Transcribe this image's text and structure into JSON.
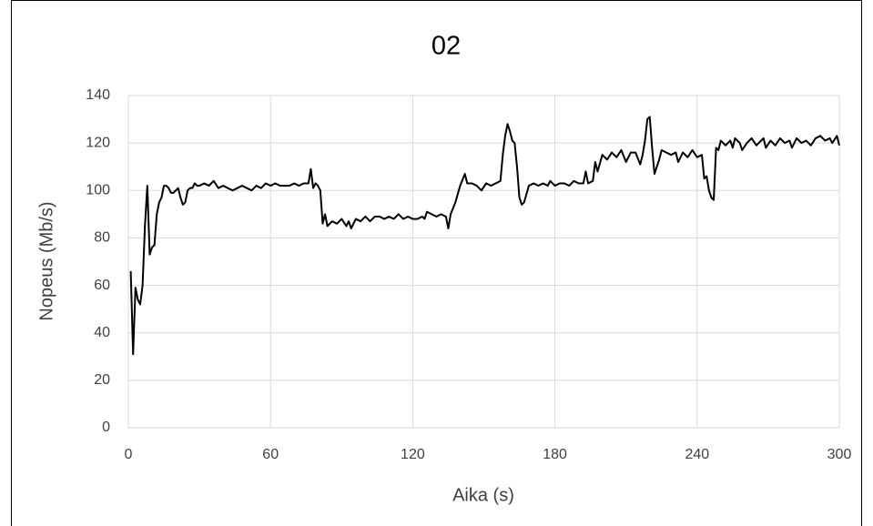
{
  "chart_data": {
    "type": "line",
    "title": "02",
    "x_label": "Aika (s)",
    "y_label": "Nopeus (Mb/s)",
    "x": [
      1,
      2,
      3,
      4,
      5,
      6,
      7,
      8,
      9,
      10,
      11,
      12,
      13,
      14,
      15,
      16,
      17,
      18,
      19,
      20,
      21,
      22,
      23,
      24,
      25,
      26,
      27,
      28,
      29,
      30,
      32,
      34,
      36,
      38,
      40,
      42,
      44,
      46,
      48,
      50,
      52,
      54,
      56,
      58,
      60,
      62,
      64,
      66,
      68,
      70,
      72,
      74,
      76,
      77,
      78,
      79,
      80,
      81,
      82,
      83,
      84,
      86,
      88,
      90,
      92,
      93,
      94,
      96,
      98,
      100,
      102,
      104,
      106,
      108,
      110,
      112,
      114,
      116,
      118,
      120,
      122,
      124,
      125,
      126,
      128,
      130,
      132,
      134,
      135,
      136,
      138,
      140,
      142,
      143,
      145,
      147,
      149,
      151,
      153,
      155,
      157,
      158,
      159,
      160,
      161,
      162,
      163,
      164,
      165,
      166,
      167,
      169,
      171,
      173,
      175,
      177,
      178,
      180,
      182,
      184,
      186,
      188,
      190,
      192,
      193,
      194,
      196,
      197,
      198,
      200,
      202,
      204,
      206,
      208,
      210,
      212,
      214,
      216,
      217,
      218,
      219,
      220,
      221,
      222,
      224,
      225,
      227,
      229,
      231,
      232,
      234,
      236,
      238,
      240,
      242,
      243,
      244,
      245,
      246,
      247,
      248,
      249,
      250,
      252,
      254,
      255,
      256,
      258,
      259,
      261,
      263,
      265,
      267,
      268,
      269,
      271,
      273,
      275,
      277,
      279,
      280,
      282,
      284,
      286,
      288,
      290,
      292,
      294,
      296,
      297,
      299,
      300
    ],
    "series": [
      {
        "name": "02",
        "color": "#000000",
        "values": [
          66,
          31,
          59,
          54,
          52,
          60,
          85,
          102,
          73,
          76,
          77,
          90,
          95,
          97,
          102,
          102,
          101,
          99,
          99,
          100,
          101,
          97,
          94,
          95,
          100,
          101,
          101,
          103,
          102,
          102,
          103,
          102,
          104,
          101,
          102,
          101,
          100,
          101,
          102,
          101,
          100,
          102,
          101,
          103,
          102,
          103,
          102,
          102,
          102,
          103,
          102,
          103,
          103,
          109,
          101,
          103,
          102,
          100,
          86,
          90,
          85,
          87,
          86,
          88,
          85,
          87,
          84,
          88,
          87,
          89,
          87,
          89,
          89,
          88,
          89,
          88,
          90,
          88,
          89,
          88,
          88,
          89,
          88,
          91,
          90,
          89,
          90,
          89,
          84,
          90,
          95,
          102,
          107,
          103,
          103,
          102,
          100,
          103,
          102,
          103,
          104,
          115,
          123,
          128,
          125,
          121,
          120,
          110,
          97,
          94,
          95,
          102,
          103,
          102,
          103,
          102,
          104,
          102,
          103,
          103,
          102,
          104,
          103,
          103,
          108,
          103,
          104,
          112,
          108,
          115,
          113,
          116,
          114,
          117,
          112,
          116,
          116,
          111,
          115,
          121,
          130,
          131,
          118,
          107,
          113,
          117,
          116,
          115,
          116,
          112,
          116,
          114,
          117,
          114,
          115,
          105,
          106,
          100,
          97,
          96,
          118,
          117,
          121,
          119,
          121,
          118,
          122,
          120,
          117,
          120,
          122,
          119,
          121,
          122,
          118,
          121,
          119,
          122,
          120,
          121,
          118,
          122,
          120,
          121,
          119,
          122,
          123,
          121,
          122,
          120,
          123,
          119
        ]
      }
    ],
    "xlim": [
      0,
      300
    ],
    "xticks": [
      0,
      60,
      120,
      180,
      240,
      300
    ],
    "ylim": [
      0,
      140
    ],
    "yticks": [
      0,
      20,
      40,
      60,
      80,
      100,
      120,
      140
    ],
    "grid": true
  }
}
